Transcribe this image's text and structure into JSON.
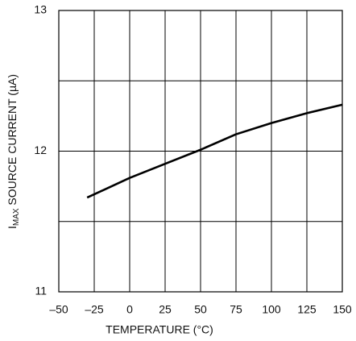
{
  "chart_data": {
    "type": "line",
    "xlabel": "TEMPERATURE (°C)",
    "ylabel": [
      "I",
      "MAX",
      " SOURCE CURRENT (µA)"
    ],
    "x": [
      -30,
      0,
      25,
      50,
      75,
      100,
      125,
      150
    ],
    "series": [
      {
        "name": "IMAX",
        "color": "#000000",
        "values": [
          11.67,
          11.81,
          11.91,
          12.01,
          12.12,
          12.2,
          12.27,
          12.33
        ]
      }
    ],
    "xlim": [
      -50,
      150
    ],
    "xticks": [
      {
        "value": -50,
        "label": "–50"
      },
      {
        "value": -25,
        "label": "–25"
      },
      0,
      25,
      50,
      75,
      100,
      125,
      150
    ],
    "ylim": [
      11,
      13
    ],
    "yticks": [
      11,
      12,
      13
    ],
    "yminor_ticks": [
      11.5,
      12.5
    ],
    "grid": true
  }
}
